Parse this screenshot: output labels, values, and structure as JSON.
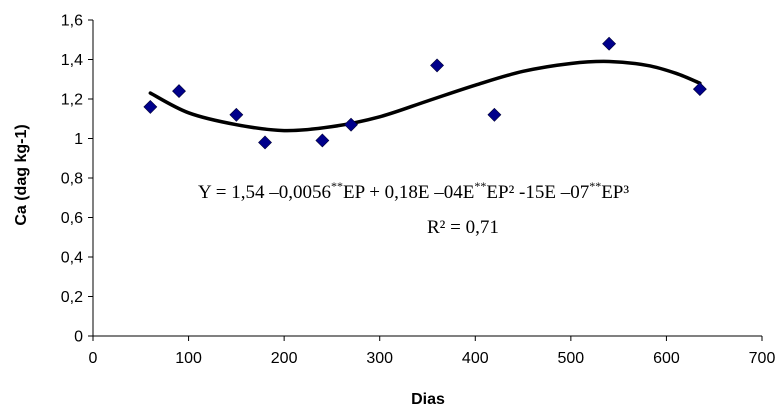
{
  "chart_data": {
    "type": "scatter",
    "xlabel": "Dias",
    "ylabel": "Ca (dag kg-1)",
    "xlim": [
      0,
      700
    ],
    "ylim": [
      0,
      1.6
    ],
    "x_ticks": [
      "0",
      "100",
      "200",
      "300",
      "400",
      "500",
      "600",
      "700"
    ],
    "y_ticks": [
      "0",
      "0,2",
      "0,4",
      "0,6",
      "0,8",
      "1",
      "1,2",
      "1,4",
      "1,6"
    ],
    "grid": false,
    "series": [
      {
        "type": "scatter",
        "marker": "diamond",
        "color": "#00008B",
        "x": [
          60,
          90,
          150,
          180,
          240,
          270,
          360,
          420,
          540,
          635
        ],
        "y": [
          1.16,
          1.24,
          1.12,
          0.98,
          0.99,
          1.07,
          1.37,
          1.12,
          1.48,
          1.25
        ]
      },
      {
        "type": "line",
        "style": "polynomial trend (cubic)",
        "color": "#000000",
        "x": [
          60,
          100,
          150,
          200,
          250,
          300,
          350,
          400,
          450,
          500,
          540,
          580,
          610,
          635
        ],
        "y": [
          1.23,
          1.13,
          1.07,
          1.04,
          1.06,
          1.11,
          1.19,
          1.27,
          1.34,
          1.38,
          1.39,
          1.37,
          1.33,
          1.28
        ]
      }
    ],
    "annotation": {
      "equation_parts": [
        "Y = 1,54 –0,0056",
        "**",
        "EP + 0,18E –04E",
        "**",
        "EP² -15E –07",
        "**",
        "EP³"
      ],
      "r_squared": "R² = 0,71"
    }
  }
}
